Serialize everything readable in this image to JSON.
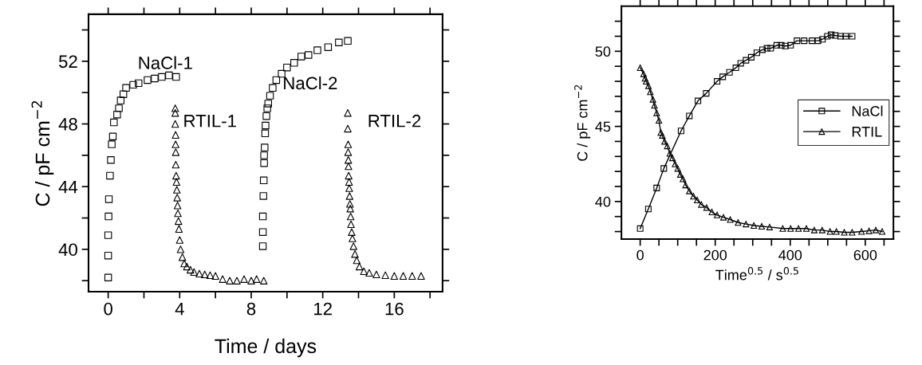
{
  "chart_data": [
    {
      "type": "scatter",
      "xlabel": "Time / days",
      "ylabel": "C / pF cm$^{−2}$",
      "xlim": [
        -1.1,
        18.7
      ],
      "ylim": [
        37.3,
        55
      ],
      "xticks": [
        0,
        {
          "value": 2,
          "label": null
        },
        4,
        {
          "value": 6,
          "label": null
        },
        8,
        {
          "value": 10,
          "label": null
        },
        12,
        {
          "value": 14,
          "label": null
        },
        16,
        {
          "value": 18,
          "label": null
        }
      ],
      "yticks": [
        {
          "value": 38,
          "label": null
        },
        40,
        {
          "value": 42,
          "label": null
        },
        44,
        {
          "value": 46,
          "label": null
        },
        48,
        {
          "value": 50,
          "label": null
        },
        52,
        {
          "value": 54,
          "label": null
        }
      ],
      "grid": false,
      "series": [
        {
          "name": "NaCl-1",
          "color": "#000000",
          "marker": "square",
          "x": [
            0,
            0,
            0,
            0.02,
            0.04,
            0.1,
            0.15,
            0.2,
            0.26,
            0.32,
            0.5,
            0.6,
            0.7,
            0.85,
            1.0,
            1.4,
            1.7,
            2.2,
            2.6,
            3.0,
            3.4,
            3.8
          ],
          "values": [
            38.2,
            39.6,
            40.9,
            42.1,
            43.2,
            44.7,
            45.7,
            46.7,
            47.2,
            48.1,
            48.6,
            49.0,
            49.5,
            49.9,
            50.3,
            50.5,
            50.6,
            50.8,
            50.9,
            51.0,
            51.1,
            51.0
          ]
        },
        {
          "name": "RTIL-1",
          "color": "#000000",
          "marker": "triangle",
          "x": [
            3.75,
            3.75,
            3.75,
            3.77,
            3.77,
            3.78,
            3.78,
            3.8,
            3.82,
            3.84,
            3.86,
            3.88,
            3.9,
            3.93,
            3.96,
            4.0,
            4.05,
            4.15,
            4.25,
            4.4,
            4.6,
            4.8,
            5.1,
            5.4,
            5.7,
            6.0,
            6.4,
            6.8,
            7.2,
            7.6,
            8.0,
            8.3,
            8.7
          ],
          "values": [
            49.0,
            48.7,
            48.0,
            47.3,
            46.7,
            46.2,
            45.4,
            44.7,
            44.3,
            43.8,
            43.3,
            42.8,
            42.3,
            41.8,
            41.3,
            40.6,
            40.0,
            39.5,
            39.1,
            38.9,
            38.7,
            38.55,
            38.45,
            38.4,
            38.35,
            38.3,
            38.1,
            38.0,
            38.0,
            38.1,
            38.0,
            38.1,
            38.0
          ]
        },
        {
          "name": "NaCl-2",
          "color": "#000000",
          "marker": "square",
          "x": [
            8.65,
            8.65,
            8.65,
            8.68,
            8.7,
            8.72,
            8.72,
            8.75,
            8.78,
            8.8,
            8.85,
            8.9,
            8.95,
            9.05,
            9.2,
            9.4,
            9.7,
            10.0,
            10.4,
            10.8,
            11.2,
            11.7,
            12.3,
            12.9,
            13.4
          ],
          "values": [
            40.2,
            41.1,
            42.1,
            43.4,
            44.4,
            45.5,
            46.0,
            46.5,
            47.4,
            47.9,
            48.5,
            49.0,
            49.3,
            49.8,
            50.3,
            50.8,
            51.2,
            51.6,
            51.9,
            52.3,
            52.4,
            52.7,
            52.9,
            53.2,
            53.3
          ]
        },
        {
          "name": "RTIL-2",
          "color": "#000000",
          "marker": "triangle",
          "x": [
            13.4,
            13.4,
            13.42,
            13.42,
            13.43,
            13.44,
            13.45,
            13.47,
            13.48,
            13.5,
            13.52,
            13.54,
            13.56,
            13.58,
            13.62,
            13.66,
            13.72,
            13.8,
            13.9,
            14.05,
            14.3,
            14.6,
            15.0,
            15.5,
            16.0,
            16.5,
            17.0,
            17.5
          ],
          "values": [
            48.7,
            47.7,
            46.7,
            46.2,
            45.7,
            45.3,
            44.7,
            44.3,
            43.9,
            43.4,
            42.9,
            42.6,
            42.1,
            41.6,
            41.1,
            40.7,
            40.2,
            39.7,
            39.3,
            38.9,
            38.6,
            38.5,
            38.4,
            38.35,
            38.3,
            38.3,
            38.3,
            38.3
          ]
        }
      ]
    },
    {
      "type": "line",
      "xlabel": "Time$^{0.5}$ / s$^{0.5}$",
      "ylabel": "C / pF cm$^{−2}$",
      "xlim": [
        -50,
        675
      ],
      "ylim": [
        37.5,
        53
      ],
      "xticks": [
        0,
        {
          "value": 50,
          "label": null
        },
        {
          "value": 100,
          "label": null
        },
        {
          "value": 150,
          "label": null
        },
        200,
        {
          "value": 250,
          "label": null
        },
        {
          "value": 300,
          "label": null
        },
        {
          "value": 350,
          "label": null
        },
        400,
        {
          "value": 450,
          "label": null
        },
        {
          "value": 500,
          "label": null
        },
        {
          "value": 550,
          "label": null
        },
        600,
        {
          "value": 650,
          "label": null
        }
      ],
      "yticks": [
        {
          "value": 38,
          "label": null
        },
        {
          "value": 39,
          "label": null
        },
        40,
        {
          "value": 41,
          "label": null
        },
        {
          "value": 42,
          "label": null
        },
        {
          "value": 43,
          "label": null
        },
        {
          "value": 44,
          "label": null
        },
        45,
        {
          "value": 46,
          "label": null
        },
        {
          "value": 47,
          "label": null
        },
        {
          "value": 48,
          "label": null
        },
        {
          "value": 49,
          "label": null
        },
        50,
        {
          "value": 51,
          "label": null
        },
        {
          "value": 52,
          "label": null
        }
      ],
      "grid": false,
      "legend": "right",
      "series": [
        {
          "name": "NaCl",
          "color": "#000000",
          "marker": "square",
          "line_style": "solid",
          "x": [
            0,
            21.7,
            44,
            63,
            109,
            131,
            154,
            176,
            205,
            220,
            238,
            255,
            268,
            282,
            296,
            311,
            326,
            338,
            348,
            364,
            376,
            387,
            401,
            418,
            437,
            458,
            474,
            486,
            499,
            509,
            520,
            534,
            548,
            565
          ],
          "values": [
            38.2,
            39.5,
            40.9,
            42.2,
            44.7,
            45.7,
            46.7,
            47.2,
            48.0,
            48.3,
            48.6,
            48.9,
            49.2,
            49.4,
            49.6,
            49.9,
            50.1,
            50.2,
            50.2,
            50.4,
            50.4,
            50.35,
            50.4,
            50.7,
            50.7,
            50.7,
            50.7,
            50.8,
            51.0,
            51.1,
            51.05,
            51.0,
            51.0,
            51.0
          ]
        },
        {
          "name": "RTIL",
          "color": "#000000",
          "marker": "triangle",
          "line_style": "solid",
          "x": [
            0,
            9,
            13,
            16,
            22,
            27,
            34,
            38,
            44,
            50,
            55,
            59,
            65,
            72,
            79,
            86,
            93,
            100,
            107,
            114,
            121,
            131,
            142,
            152,
            163,
            177,
            191,
            205,
            222,
            240,
            261,
            282,
            303,
            324,
            345,
            380,
            401,
            422,
            443,
            464,
            485,
            506,
            523,
            544,
            565,
            590,
            610,
            628,
            645
          ],
          "values": [
            48.9,
            48.5,
            48.2,
            48.0,
            47.7,
            47.3,
            46.8,
            46.4,
            45.9,
            45.4,
            44.6,
            44.4,
            44.0,
            43.7,
            43.2,
            42.9,
            42.5,
            42.2,
            41.8,
            41.5,
            41.1,
            40.7,
            40.35,
            40.1,
            39.8,
            39.6,
            39.3,
            39.1,
            38.95,
            38.8,
            38.6,
            38.5,
            38.4,
            38.35,
            38.3,
            38.2,
            38.2,
            38.2,
            38.2,
            38.1,
            38.1,
            38.0,
            38.0,
            37.95,
            37.95,
            38.0,
            38.05,
            38.1,
            38.0
          ]
        }
      ]
    }
  ]
}
